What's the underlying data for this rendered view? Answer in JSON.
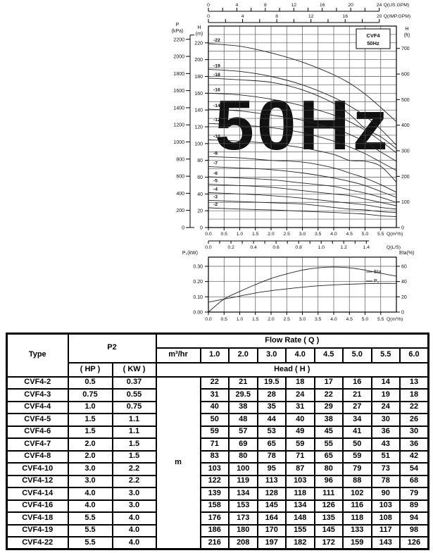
{
  "chart_data": [
    {
      "type": "line",
      "title": "CVF4 50Hz",
      "watermark": "50Hz",
      "badge_lines": [
        "CVF4",
        "50Hz"
      ],
      "x": [
        0,
        1.0,
        2.0,
        3.0,
        4.0,
        4.5,
        5.0,
        5.5,
        6.0
      ],
      "series": [
        {
          "name": "-22",
          "values": [
            219,
            216,
            208,
            197,
            182,
            172,
            159,
            143,
            126
          ]
        },
        {
          "name": "-19",
          "values": [
            188.5,
            186,
            180,
            170,
            155,
            145,
            133,
            117,
            98
          ]
        },
        {
          "name": "-18",
          "values": [
            178,
            176,
            173,
            164,
            148,
            135,
            118,
            108,
            94
          ]
        },
        {
          "name": "-16",
          "values": [
            160,
            158,
            153,
            145,
            134,
            126,
            116,
            103,
            89
          ]
        },
        {
          "name": "-14",
          "values": [
            141,
            139,
            134,
            128,
            118,
            111,
            102,
            90,
            79
          ]
        },
        {
          "name": "-12",
          "values": [
            124,
            122,
            119,
            113,
            103,
            96,
            88,
            78,
            68
          ]
        },
        {
          "name": "-10",
          "values": [
            104.5,
            103,
            100,
            95,
            87,
            80,
            79,
            73,
            54
          ]
        },
        {
          "name": "-8",
          "values": [
            84.5,
            83,
            80,
            78,
            71,
            65,
            59,
            51,
            42
          ]
        },
        {
          "name": "-7",
          "values": [
            72.5,
            71,
            69,
            65,
            59,
            55,
            50,
            43,
            36
          ]
        },
        {
          "name": "-6",
          "values": [
            60.5,
            59,
            57,
            53,
            49,
            45,
            41,
            36,
            30
          ]
        },
        {
          "name": "-5",
          "values": [
            51.5,
            50,
            48,
            44,
            40,
            38,
            34,
            30,
            26
          ]
        },
        {
          "name": "-4",
          "values": [
            41.5,
            40,
            38,
            35,
            31,
            29,
            27,
            24,
            22
          ]
        },
        {
          "name": "-3",
          "values": [
            32.5,
            31,
            29.5,
            28,
            24,
            22,
            21,
            19,
            18
          ]
        },
        {
          "name": "-2",
          "values": [
            23.5,
            22,
            21,
            19.5,
            18,
            17,
            16,
            14,
            13
          ]
        }
      ],
      "axes": {
        "x_m3h": {
          "label": "Q(m³/h)",
          "ticks": [
            0,
            0.5,
            1,
            1.5,
            2,
            2.5,
            3,
            3.5,
            4,
            4.5,
            5,
            5.5
          ],
          "range": [
            0,
            6
          ]
        },
        "x_ls": {
          "label": "Q(L/S)",
          "ticks": [
            0,
            0.2,
            0.4,
            0.6,
            0.8,
            1.0,
            1.2,
            1.4
          ],
          "m3h_per_unit": 3.6
        },
        "x_usgpm": {
          "label": "Q(US.GPM)",
          "ticks": [
            0,
            4,
            8,
            12,
            16,
            20,
            24
          ],
          "m3h_per_unit": 0.22712
        },
        "x_impgpm": {
          "label": "Q(IMP.GPM)",
          "ticks": [
            0,
            4,
            8,
            12,
            16,
            20
          ],
          "m3h_per_unit": 0.27276
        },
        "y_m": {
          "label": [
            "H",
            "(m)"
          ],
          "ticks": [
            0,
            20,
            40,
            60,
            80,
            100,
            120,
            140,
            160,
            180,
            200,
            220
          ],
          "range": [
            0,
            240
          ],
          "grid_step": 10
        },
        "y_kpa": {
          "label": [
            "P",
            "(kPa)"
          ],
          "ticks": [
            0,
            200,
            400,
            600,
            800,
            1000,
            1200,
            1400,
            1600,
            1800,
            2000,
            2200
          ],
          "kpa_per_m": 9.81
        },
        "y_ft": {
          "label": [
            "H",
            "(ft)"
          ],
          "ticks": [
            0,
            100,
            200,
            300,
            400,
            500,
            600,
            700
          ],
          "m_per_ft": 0.3048
        }
      }
    },
    {
      "type": "line",
      "x": [
        0,
        0.5,
        1.0,
        1.5,
        2.0,
        2.5,
        3.0,
        3.5,
        4.0,
        4.5,
        5.0,
        5.5,
        6.0
      ],
      "series": [
        {
          "name": "Eta",
          "unit": "%",
          "axis": "right",
          "values": [
            0,
            17,
            27,
            36,
            44,
            50,
            55,
            58,
            59,
            58,
            55,
            51,
            47
          ]
        },
        {
          "name": "P₂",
          "unit": "kW",
          "axis": "left",
          "values": [
            0.065,
            0.085,
            0.105,
            0.125,
            0.14,
            0.152,
            0.163,
            0.172,
            0.178,
            0.183,
            0.186,
            0.188,
            0.188
          ]
        }
      ],
      "axes": {
        "x_m3h": {
          "label": "Q(m³/h)",
          "ticks": [
            0,
            0.5,
            1,
            1.5,
            2,
            2.5,
            3,
            3.5,
            4,
            4.5,
            5,
            5.5
          ],
          "range": [
            0,
            6
          ]
        },
        "y_kw": {
          "label": "P₂(kW)",
          "ticks": [
            "0.00",
            "0.10",
            "0.20",
            "0.30"
          ],
          "range": [
            0,
            0.36
          ]
        },
        "y_eta": {
          "label": "Eta(%)",
          "ticks": [
            0,
            20,
            40,
            60
          ],
          "range": [
            0,
            72
          ]
        }
      },
      "curve_labels": [
        "Eta",
        "P₂"
      ]
    }
  ],
  "table": {
    "header": {
      "type": "Type",
      "p2": "P2",
      "hp": "( HP )",
      "kw": "( KW )",
      "flow_rate": "Flow Rate ( Q )",
      "m3hr": "m³/hr",
      "head": "Head ( H )",
      "flow_columns": [
        "1.0",
        "2.0",
        "3.0",
        "4.0",
        "4.5",
        "5.0",
        "5.5",
        "6.0"
      ],
      "unit": "m"
    },
    "rows": [
      {
        "type": "CVF4-2",
        "hp": "0.5",
        "kw": "0.37",
        "heads": [
          "22",
          "21",
          "19.5",
          "18",
          "17",
          "16",
          "14",
          "13"
        ]
      },
      {
        "type": "CVF4-3",
        "hp": "0.75",
        "kw": "0.55",
        "heads": [
          "31",
          "29.5",
          "28",
          "24",
          "22",
          "21",
          "19",
          "18"
        ]
      },
      {
        "type": "CVF4-4",
        "hp": "1.0",
        "kw": "0.75",
        "heads": [
          "40",
          "38",
          "35",
          "31",
          "29",
          "27",
          "24",
          "22"
        ]
      },
      {
        "type": "CVF4-5",
        "hp": "1.5",
        "kw": "1.1",
        "heads": [
          "50",
          "48",
          "44",
          "40",
          "38",
          "34",
          "30",
          "26"
        ]
      },
      {
        "type": "CVF4-6",
        "hp": "1.5",
        "kw": "1.1",
        "heads": [
          "59",
          "57",
          "53",
          "49",
          "45",
          "41",
          "36",
          "30"
        ]
      },
      {
        "type": "CVF4-7",
        "hp": "2.0",
        "kw": "1.5",
        "heads": [
          "71",
          "69",
          "65",
          "59",
          "55",
          "50",
          "43",
          "36"
        ]
      },
      {
        "type": "CVF4-8",
        "hp": "2.0",
        "kw": "1.5",
        "heads": [
          "83",
          "80",
          "78",
          "71",
          "65",
          "59",
          "51",
          "42"
        ]
      },
      {
        "type": "CVF4-10",
        "hp": "3.0",
        "kw": "2.2",
        "heads": [
          "103",
          "100",
          "95",
          "87",
          "80",
          "79",
          "73",
          "54"
        ]
      },
      {
        "type": "CVF4-12",
        "hp": "3.0",
        "kw": "2.2",
        "heads": [
          "122",
          "119",
          "113",
          "103",
          "96",
          "88",
          "78",
          "68"
        ]
      },
      {
        "type": "CVF4-14",
        "hp": "4.0",
        "kw": "3.0",
        "heads": [
          "139",
          "134",
          "128",
          "118",
          "111",
          "102",
          "90",
          "79"
        ]
      },
      {
        "type": "CVF4-16",
        "hp": "4.0",
        "kw": "3.0",
        "heads": [
          "158",
          "153",
          "145",
          "134",
          "126",
          "116",
          "103",
          "89"
        ]
      },
      {
        "type": "CVF4-18",
        "hp": "5.5",
        "kw": "4.0",
        "heads": [
          "176",
          "173",
          "164",
          "148",
          "135",
          "118",
          "108",
          "94"
        ]
      },
      {
        "type": "CVF4-19",
        "hp": "5.5",
        "kw": "4.0",
        "heads": [
          "186",
          "180",
          "170",
          "155",
          "145",
          "133",
          "117",
          "98"
        ]
      },
      {
        "type": "CVF4-22",
        "hp": "5.5",
        "kw": "4.0",
        "heads": [
          "216",
          "208",
          "197",
          "182",
          "172",
          "159",
          "143",
          "126"
        ]
      }
    ]
  },
  "colors": {
    "curve": "#222222",
    "grid": "#555555",
    "axis": "#000000",
    "watermark": "#c6c6c6"
  }
}
